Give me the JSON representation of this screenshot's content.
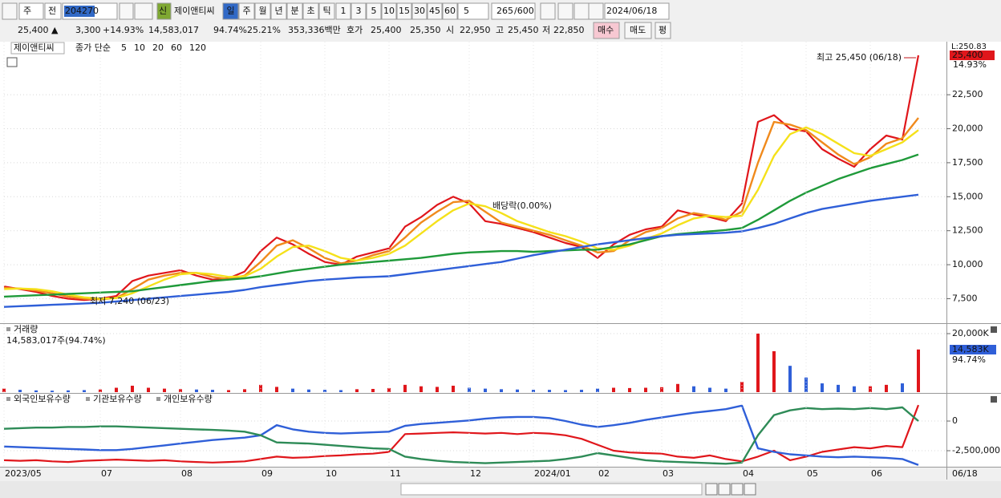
{
  "toolbar": {
    "period_unit": "주",
    "compare": "전",
    "code": "204270",
    "badge": "신",
    "name": "제이앤티씨",
    "periods": [
      "일",
      "주",
      "월",
      "년",
      "분",
      "초",
      "틱"
    ],
    "intervals": [
      "1",
      "3",
      "5",
      "10",
      "15",
      "30",
      "45",
      "60"
    ],
    "interval_select": "5",
    "visible_count": "265",
    "max_count": "/600",
    "date": "2024/06/18"
  },
  "info_bar": {
    "price": "25,400 ▲",
    "change": "3,300",
    "change_pct": "+14.93%",
    "volume": "14,583,017",
    "volume_ratio": "94.74%",
    "turnover": "25.21%",
    "amount": "353,336백만",
    "quote_label": "호가",
    "ask": "25,400",
    "bid": "25,350",
    "open_label": "시",
    "open": "22,950",
    "high_label": "고",
    "high": "25,450",
    "low_label": "저",
    "low": "22,850",
    "buy": "매수",
    "sell": "매도",
    "avg": "평"
  },
  "chart_data": [
    {
      "type": "line",
      "title": "제이앤티씨",
      "legend_title": "종가 단순",
      "categories": [
        "2023/05",
        null,
        null,
        null,
        null,
        null,
        "07",
        null,
        null,
        null,
        null,
        "08",
        null,
        null,
        null,
        null,
        "09",
        null,
        null,
        null,
        "10",
        null,
        null,
        null,
        "11",
        null,
        null,
        null,
        null,
        "12",
        null,
        null,
        null,
        "2024/01",
        null,
        null,
        null,
        "02",
        null,
        null,
        null,
        "03",
        null,
        null,
        null,
        null,
        "04",
        null,
        null,
        null,
        "05",
        null,
        null,
        null,
        "06",
        null,
        null,
        null
      ],
      "x_end_label": "06/18",
      "series": [
        {
          "name": "5",
          "color": "#e0161b",
          "values": [
            8400,
            8200,
            8000,
            7700,
            7500,
            7400,
            7500,
            7700,
            8800,
            9200,
            9400,
            9600,
            9200,
            8900,
            9000,
            9500,
            11000,
            12000,
            11500,
            10800,
            10200,
            10000,
            10600,
            10900,
            11200,
            12800,
            13500,
            14400,
            15000,
            14500,
            13200,
            13000,
            12700,
            12400,
            12000,
            11600,
            11300,
            10500,
            11500,
            12200,
            12600,
            12800,
            14000,
            13700,
            13500,
            13200,
            14500,
            20500,
            21000,
            20000,
            19800,
            18500,
            17800,
            17200,
            18500,
            19500,
            19200,
            25400
          ]
        },
        {
          "name": "10",
          "color": "#f08a1c",
          "values": [
            8300,
            8250,
            8100,
            7900,
            7650,
            7500,
            7450,
            7550,
            8200,
            8900,
            9200,
            9400,
            9400,
            9100,
            8950,
            9200,
            10200,
            11400,
            11800,
            11200,
            10500,
            10100,
            10300,
            10700,
            11000,
            12000,
            13100,
            13900,
            14600,
            14700,
            13900,
            13100,
            12800,
            12500,
            12200,
            11800,
            11400,
            10900,
            11000,
            11800,
            12400,
            12700,
            13400,
            13800,
            13600,
            13300,
            13900,
            17500,
            20500,
            20300,
            19900,
            19000,
            18100,
            17400,
            17900,
            18900,
            19300,
            20800
          ]
        },
        {
          "name": "20",
          "color": "#f5e11a",
          "values": [
            8200,
            8250,
            8200,
            8050,
            7800,
            7600,
            7500,
            7550,
            7900,
            8400,
            8900,
            9300,
            9400,
            9300,
            9100,
            9150,
            9700,
            10600,
            11300,
            11400,
            11000,
            10500,
            10300,
            10500,
            10800,
            11400,
            12300,
            13200,
            14000,
            14500,
            14300,
            13800,
            13200,
            12800,
            12400,
            12100,
            11700,
            11200,
            11100,
            11400,
            11900,
            12300,
            12900,
            13400,
            13600,
            13500,
            13600,
            15500,
            18000,
            19600,
            20100,
            19600,
            18900,
            18200,
            18000,
            18500,
            19000,
            19900
          ]
        },
        {
          "name": "60",
          "color": "#1f9a3a",
          "values": [
            7650,
            7700,
            7750,
            7800,
            7850,
            7900,
            7950,
            8000,
            8050,
            8200,
            8350,
            8500,
            8650,
            8800,
            8900,
            9000,
            9150,
            9350,
            9550,
            9700,
            9850,
            10000,
            10100,
            10200,
            10300,
            10400,
            10500,
            10650,
            10800,
            10900,
            10950,
            11000,
            11000,
            10950,
            11000,
            11050,
            11100,
            11100,
            11300,
            11500,
            11800,
            12100,
            12250,
            12350,
            12450,
            12550,
            12700,
            13300,
            14000,
            14700,
            15300,
            15800,
            16300,
            16700,
            17100,
            17400,
            17700,
            18100
          ]
        },
        {
          "name": "120",
          "color": "#2f5fd8",
          "values": [
            6900,
            6950,
            7000,
            7050,
            7100,
            7150,
            7200,
            7300,
            7400,
            7500,
            7600,
            7700,
            7800,
            7900,
            8000,
            8150,
            8350,
            8500,
            8650,
            8800,
            8900,
            8980,
            9060,
            9100,
            9150,
            9300,
            9450,
            9600,
            9750,
            9900,
            10050,
            10200,
            10450,
            10700,
            10900,
            11100,
            11300,
            11500,
            11650,
            11800,
            11950,
            12100,
            12200,
            12250,
            12300,
            12350,
            12450,
            12700,
            13000,
            13400,
            13800,
            14100,
            14300,
            14500,
            14700,
            14850,
            15000,
            15150
          ]
        }
      ],
      "ylim": [
        5700,
        26400
      ],
      "yticks": [
        {
          "value": 7500,
          "label": "7,500"
        },
        {
          "value": 10000,
          "label": "10,000"
        },
        {
          "value": 12500,
          "label": "12,500"
        },
        {
          "value": 15000,
          "label": "15,000"
        },
        {
          "value": 17500,
          "label": "17,500"
        },
        {
          "value": 20000,
          "label": "20,000"
        },
        {
          "value": 22500,
          "label": "22,500"
        }
      ],
      "grid": true,
      "annotations": {
        "max": "최고 25,450 (06/18)",
        "min": "최저 7,240 (06/23)",
        "dividend": "배당락(0.00%)"
      },
      "right_labels": {
        "scale": "L:250.83",
        "last": "25,400",
        "change": "14.93%"
      }
    },
    {
      "type": "bar",
      "title": "거래량",
      "subtitle": "14,583,017주(94.74%)",
      "up_color": "#e0161b",
      "down_color": "#2f5fd8",
      "values": [
        1200,
        800,
        600,
        500,
        600,
        700,
        900,
        1500,
        2200,
        1500,
        1200,
        1000,
        900,
        800,
        700,
        1000,
        2500,
        1800,
        1200,
        900,
        800,
        700,
        1000,
        1100,
        1400,
        2500,
        2000,
        1800,
        2200,
        1500,
        1200,
        1000,
        900,
        800,
        800,
        700,
        800,
        1200,
        1500,
        1400,
        1500,
        1700,
        2800,
        2000,
        1500,
        1200,
        3500,
        20000,
        14000,
        9000,
        5000,
        3000,
        2500,
        2000,
        2000,
        2500,
        3000,
        14583
      ],
      "ylim": [
        0,
        23300
      ],
      "yticks": [
        {
          "value": 20000,
          "label": "20,000K"
        }
      ],
      "last_label": "14,583K",
      "ratio_label": "94.74%"
    },
    {
      "type": "line",
      "series": [
        {
          "name": "외국인보유수량",
          "color": "#e0161b",
          "values": [
            -3300000,
            -3350000,
            -3300000,
            -3400000,
            -3450000,
            -3350000,
            -3300000,
            -3250000,
            -3300000,
            -3350000,
            -3300000,
            -3400000,
            -3450000,
            -3500000,
            -3450000,
            -3400000,
            -3200000,
            -3000000,
            -3100000,
            -3050000,
            -2950000,
            -2900000,
            -2800000,
            -2750000,
            -2600000,
            -1100000,
            -1050000,
            -1000000,
            -950000,
            -1000000,
            -1050000,
            -1000000,
            -1100000,
            -1000000,
            -1050000,
            -1200000,
            -1500000,
            -2000000,
            -2500000,
            -2650000,
            -2700000,
            -2750000,
            -3000000,
            -3100000,
            -2900000,
            -3200000,
            -3400000,
            -3000000,
            -2500000,
            -3300000,
            -3000000,
            -2600000,
            -2400000,
            -2200000,
            -2300000,
            -2100000,
            -2200000,
            1350000
          ]
        },
        {
          "name": "기관보유수량",
          "color": "#2f5fd8",
          "values": [
            -2150000,
            -2200000,
            -2250000,
            -2300000,
            -2350000,
            -2400000,
            -2450000,
            -2450000,
            -2350000,
            -2200000,
            -2050000,
            -1900000,
            -1750000,
            -1600000,
            -1500000,
            -1400000,
            -1200000,
            -350000,
            -700000,
            -900000,
            -1000000,
            -1050000,
            -1000000,
            -950000,
            -900000,
            -400000,
            -250000,
            -150000,
            -50000,
            50000,
            200000,
            300000,
            350000,
            350000,
            250000,
            0,
            -300000,
            -500000,
            -350000,
            -150000,
            100000,
            300000,
            500000,
            700000,
            850000,
            1000000,
            1300000,
            -2300000,
            -2600000,
            -2800000,
            -2900000,
            -3000000,
            -3050000,
            -3000000,
            -3050000,
            -3100000,
            -3200000,
            -3700000
          ]
        },
        {
          "name": "개인보유수량",
          "color": "#2e8b57",
          "values": [
            -650000,
            -600000,
            -550000,
            -550000,
            -500000,
            -500000,
            -450000,
            -450000,
            -500000,
            -550000,
            -600000,
            -650000,
            -700000,
            -750000,
            -800000,
            -900000,
            -1200000,
            -1800000,
            -1850000,
            -1900000,
            -2000000,
            -2100000,
            -2200000,
            -2300000,
            -2350000,
            -3000000,
            -3200000,
            -3350000,
            -3450000,
            -3500000,
            -3550000,
            -3500000,
            -3450000,
            -3400000,
            -3350000,
            -3200000,
            -3000000,
            -2700000,
            -2900000,
            -3100000,
            -3300000,
            -3400000,
            -3450000,
            -3500000,
            -3550000,
            -3600000,
            -3500000,
            -1200000,
            500000,
            900000,
            1100000,
            1000000,
            1050000,
            1000000,
            1100000,
            1000000,
            1150000,
            0
          ]
        }
      ],
      "ylim": [
        -3850000,
        2300000
      ],
      "yticks": [
        0,
        {
          "value": -2500000,
          "label": "-2,500,000"
        }
      ]
    }
  ]
}
